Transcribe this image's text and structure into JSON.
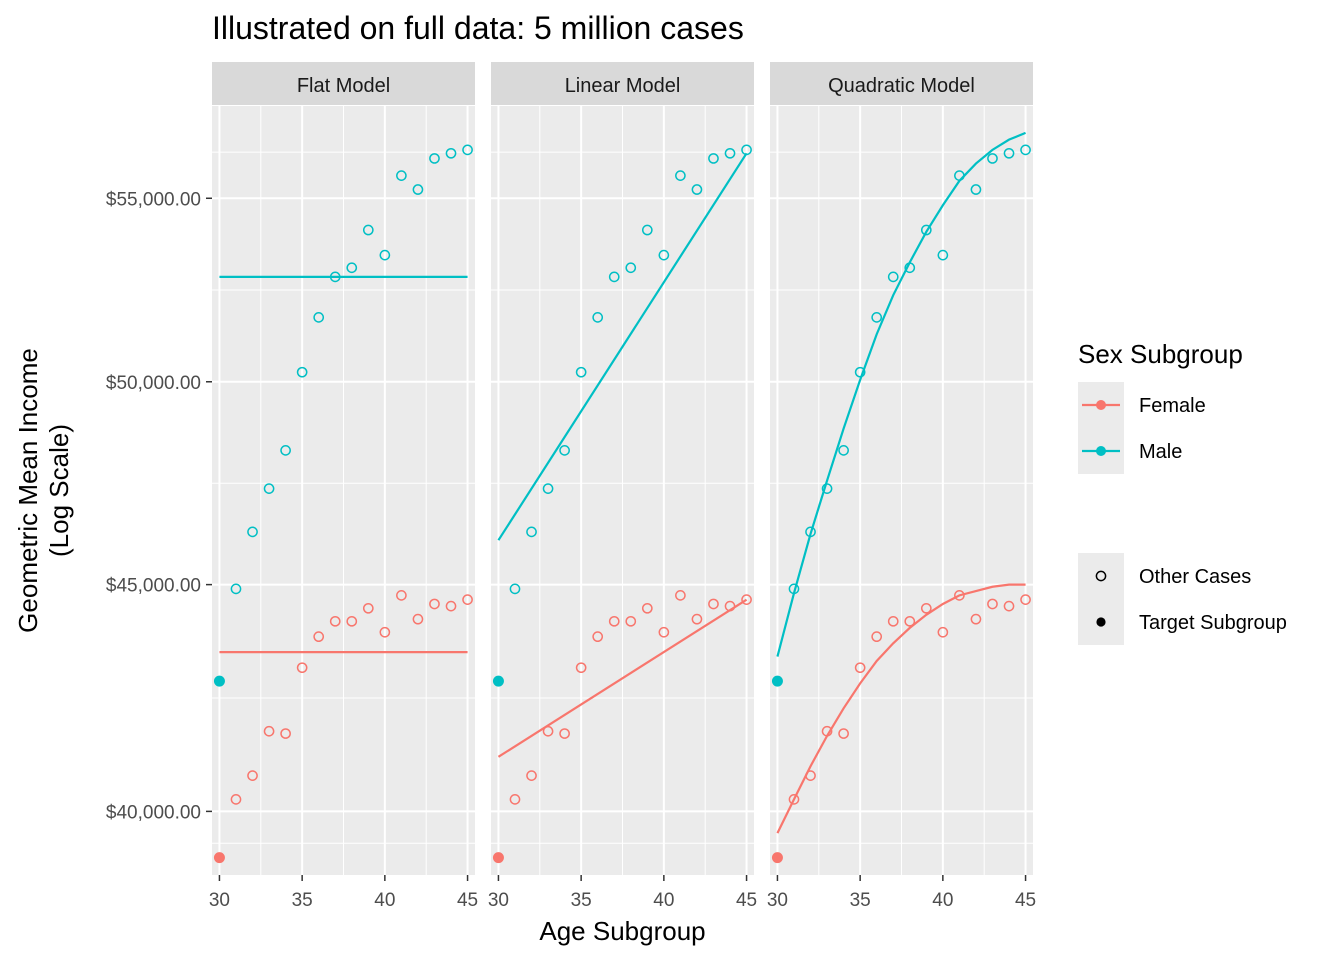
{
  "chart_data": {
    "type": "scatter",
    "title": "Illustrated on full data: 5 million cases",
    "xlabel": "Age Subgroup",
    "ylabel": "Geometric Mean Income\n(Log Scale)",
    "y_scale": "log",
    "xlim": [
      29.55,
      45.45
    ],
    "ylim": [
      38700,
      57700
    ],
    "x_ticks": [
      30,
      35,
      40,
      45
    ],
    "y_ticks": [
      40000,
      45000,
      50000,
      55000
    ],
    "y_tick_labels": [
      "$40,000.00",
      "$45,000.00",
      "$50,000.00",
      "$55,000.00"
    ],
    "grid": true,
    "facets": [
      "Flat Model",
      "Linear Model",
      "Quadratic Model"
    ],
    "colors": {
      "Female": "#F8766D",
      "Male": "#00BFC4"
    },
    "series": [
      {
        "name": "Female",
        "target": {
          "x": 30,
          "y": 39050
        },
        "points": {
          "x": [
            31,
            32,
            33,
            34,
            35,
            36,
            37,
            38,
            39,
            40,
            41,
            42,
            43,
            44,
            45
          ],
          "y": [
            40250,
            40750,
            41700,
            41650,
            43100,
            43800,
            44150,
            44150,
            44450,
            43900,
            44750,
            44200,
            44550,
            44500,
            44650
          ]
        },
        "fits": {
          "Flat Model": {
            "x": [
              30,
              45
            ],
            "y": [
              43450,
              43450
            ]
          },
          "Linear Model": {
            "x": [
              30,
              45
            ],
            "y": [
              41150,
              44650
            ]
          },
          "Quadratic Model": {
            "x": [
              30,
              31,
              32,
              33,
              34,
              35,
              36,
              37,
              38,
              39,
              40,
              41,
              42,
              43,
              44,
              45
            ],
            "y": [
              39550,
              40250,
              40950,
              41600,
              42200,
              42750,
              43250,
              43650,
              44000,
              44300,
              44550,
              44750,
              44850,
              44950,
              45000,
              45000
            ]
          }
        }
      },
      {
        "name": "Male",
        "target": {
          "x": 30,
          "y": 42800
        },
        "points": {
          "x": [
            31,
            32,
            33,
            34,
            35,
            36,
            37,
            38,
            39,
            40,
            41,
            42,
            43,
            44,
            45
          ],
          "y": [
            44900,
            46250,
            47300,
            48250,
            50250,
            51700,
            52800,
            53050,
            54100,
            53400,
            55650,
            55250,
            56150,
            56300,
            56400
          ]
        },
        "fits": {
          "Flat Model": {
            "x": [
              30,
              45
            ],
            "y": [
              52800,
              52800
            ]
          },
          "Linear Model": {
            "x": [
              30,
              45
            ],
            "y": [
              46050,
              56300
            ]
          },
          "Quadratic Model": {
            "x": [
              30,
              31,
              32,
              33,
              34,
              35,
              36,
              37,
              38,
              39,
              40,
              41,
              42,
              43,
              44,
              45
            ],
            "y": [
              43350,
              44800,
              46200,
              47500,
              48800,
              50050,
              51250,
              52300,
              53200,
              54050,
              54800,
              55500,
              56000,
              56400,
              56700,
              56900
            ]
          }
        }
      }
    ],
    "legend": {
      "position": "right",
      "color_title": "Sex Subgroup",
      "color_entries": [
        "Female",
        "Male"
      ],
      "shape_entries": [
        "Other Cases",
        "Target Subgroup"
      ]
    }
  }
}
